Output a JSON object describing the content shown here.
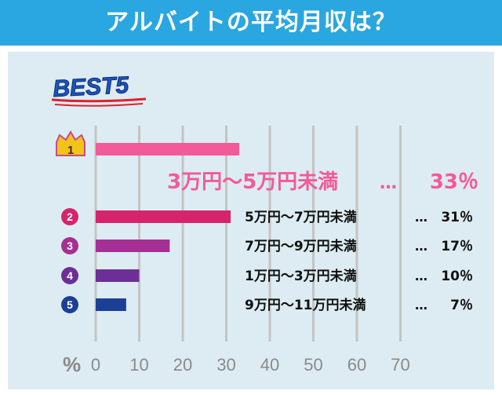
{
  "header": {
    "title": "アルバイトの平均月収は？"
  },
  "badge": {
    "text": "BEST5"
  },
  "chart_data": {
    "type": "bar",
    "orientation": "horizontal",
    "xlabel": "%",
    "xlim": [
      0,
      70
    ],
    "ticks": [
      "0",
      "10",
      "20",
      "30",
      "40",
      "50",
      "60",
      "70"
    ],
    "grid": true,
    "ranks": [
      "1",
      "2",
      "3",
      "4",
      "5"
    ],
    "categories": [
      "3万円～5万円未満",
      "5万円～7万円未満",
      "7万円～9万円未満",
      "1万円～3万円未満",
      "9万円～11万円未満"
    ],
    "values": [
      33,
      31,
      17,
      10,
      7
    ],
    "value_labels": [
      "33％",
      "31％",
      "17％",
      "10％",
      "7％"
    ],
    "separator": "…",
    "colors": [
      "#f35a9a",
      "#d6246c",
      "#a62f95",
      "#6e2e97",
      "#1c3f96"
    ]
  }
}
